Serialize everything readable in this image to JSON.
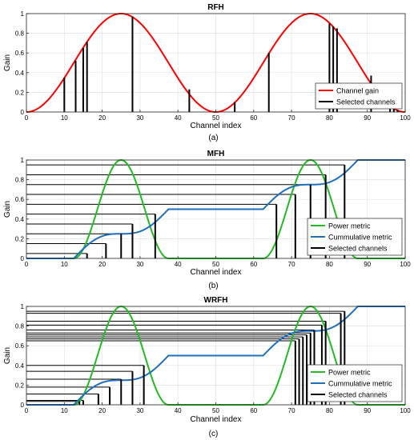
{
  "chart_data": [
    {
      "type": "line",
      "title": "RFH",
      "xlabel": "Channel index",
      "ylabel": "Gain",
      "caption": "(a)",
      "xlim": [
        0,
        100
      ],
      "ylim": [
        0,
        1
      ],
      "xticks": [
        "0",
        "10",
        "20",
        "30",
        "40",
        "50",
        "60",
        "70",
        "80",
        "90",
        "100"
      ],
      "yticks": [
        "0",
        "0.2",
        "0.4",
        "0.6",
        "0.8",
        "1"
      ],
      "grid": true,
      "legend_position": "bottom-right",
      "series": [
        {
          "name": "Channel gain",
          "kind": "curve",
          "color": "#ff0000",
          "function": "cos2_period50_peak25",
          "x": [
            0,
            5,
            10,
            15,
            20,
            25,
            30,
            35,
            40,
            45,
            50,
            55,
            60,
            65,
            70,
            75,
            80,
            85,
            90,
            95,
            100
          ],
          "values": [
            0,
            0.095,
            0.345,
            0.655,
            0.905,
            1,
            0.905,
            0.655,
            0.345,
            0.095,
            0,
            0.095,
            0.345,
            0.655,
            0.905,
            1,
            0.905,
            0.655,
            0.345,
            0.095,
            0
          ]
        },
        {
          "name": "Selected channels",
          "kind": "stems",
          "color": "#000000",
          "x": [
            10,
            13,
            15,
            16,
            28,
            43,
            55,
            64,
            80,
            81,
            82,
            91,
            96,
            97,
            98
          ],
          "values": [
            0.35,
            0.52,
            0.65,
            0.71,
            0.97,
            0.23,
            0.1,
            0.6,
            0.9,
            0.87,
            0.85,
            0.37,
            0.06,
            0.04,
            0.02
          ]
        }
      ]
    },
    {
      "type": "line",
      "title": "MFH",
      "xlabel": "Channel index",
      "ylabel": "Gain",
      "caption": "(b)",
      "xlim": [
        0,
        100
      ],
      "ylim": [
        0,
        1
      ],
      "xticks": [
        "0",
        "10",
        "20",
        "30",
        "40",
        "50",
        "60",
        "70",
        "80",
        "90",
        "100"
      ],
      "yticks": [
        "0",
        "0.2",
        "0.4",
        "0.6",
        "0.8",
        "1"
      ],
      "grid": true,
      "legend_position": "bottom-right",
      "series": [
        {
          "name": "Power metric",
          "kind": "curve",
          "color": "#22bb22",
          "function": "bumps_at_25_75_width25",
          "x": [
            0,
            5,
            10,
            15,
            20,
            25,
            30,
            35,
            40,
            45,
            50,
            55,
            60,
            65,
            70,
            75,
            80,
            85,
            90,
            95,
            100
          ],
          "values": [
            0,
            0,
            0.02,
            0.35,
            0.85,
            1,
            0.85,
            0.35,
            0.02,
            0,
            0,
            0,
            0.02,
            0.35,
            0.85,
            1,
            0.85,
            0.35,
            0.02,
            0,
            0
          ]
        },
        {
          "name": "Cummulative metric",
          "kind": "curve",
          "color": "#1f6fbf",
          "function": "cumulative_of_power",
          "x": [
            0,
            5,
            10,
            15,
            20,
            25,
            30,
            35,
            40,
            45,
            50,
            55,
            60,
            65,
            70,
            75,
            80,
            85,
            90,
            95,
            100
          ],
          "values": [
            0,
            0,
            0.001,
            0.02,
            0.12,
            0.25,
            0.38,
            0.48,
            0.5,
            0.5,
            0.5,
            0.5,
            0.5,
            0.52,
            0.62,
            0.75,
            0.88,
            0.98,
            1,
            1,
            1
          ]
        },
        {
          "name": "Selected channels",
          "kind": "stems_with_levels",
          "color": "#000000",
          "x": [
            16,
            21,
            25,
            28,
            34,
            66,
            71,
            75,
            79,
            84
          ],
          "values": [
            0.05,
            0.15,
            0.25,
            0.35,
            0.45,
            0.55,
            0.65,
            0.75,
            0.85,
            0.95
          ]
        }
      ]
    },
    {
      "type": "line",
      "title": "WRFH",
      "xlabel": "Channel index",
      "ylabel": "Gain",
      "caption": "(c)",
      "xlim": [
        0,
        100
      ],
      "ylim": [
        0,
        1
      ],
      "xticks": [
        "0",
        "10",
        "20",
        "30",
        "40",
        "50",
        "60",
        "70",
        "80",
        "90",
        "100"
      ],
      "yticks": [
        "0",
        "0.2",
        "0.4",
        "0.6",
        "0.8",
        "1"
      ],
      "grid": true,
      "legend_position": "bottom-right",
      "series": [
        {
          "name": "Power metric",
          "kind": "curve",
          "color": "#22bb22",
          "function": "bumps_at_25_75_width25",
          "x": [
            0,
            5,
            10,
            15,
            20,
            25,
            30,
            35,
            40,
            45,
            50,
            55,
            60,
            65,
            70,
            75,
            80,
            85,
            90,
            95,
            100
          ],
          "values": [
            0,
            0,
            0.02,
            0.35,
            0.85,
            1,
            0.85,
            0.35,
            0.02,
            0,
            0,
            0,
            0.02,
            0.35,
            0.85,
            1,
            0.85,
            0.35,
            0.02,
            0,
            0
          ]
        },
        {
          "name": "Cummulative metric",
          "kind": "curve",
          "color": "#1f6fbf",
          "function": "cumulative_of_power",
          "x": [
            0,
            5,
            10,
            15,
            20,
            25,
            30,
            35,
            40,
            45,
            50,
            55,
            60,
            65,
            70,
            75,
            80,
            85,
            90,
            95,
            100
          ],
          "values": [
            0,
            0,
            0.001,
            0.02,
            0.12,
            0.25,
            0.38,
            0.48,
            0.5,
            0.5,
            0.5,
            0.5,
            0.5,
            0.52,
            0.62,
            0.75,
            0.88,
            0.98,
            1,
            1,
            1
          ]
        },
        {
          "name": "Selected channels",
          "kind": "stems_with_levels",
          "color": "#000000",
          "x": [
            14,
            15,
            19,
            22,
            25,
            28,
            31,
            71,
            72,
            73,
            74,
            75,
            76,
            78,
            79,
            83,
            84
          ],
          "values": [
            0.035,
            0.045,
            0.11,
            0.18,
            0.26,
            0.34,
            0.4,
            0.65,
            0.67,
            0.69,
            0.71,
            0.73,
            0.76,
            0.81,
            0.85,
            0.93,
            0.95
          ]
        }
      ]
    }
  ]
}
